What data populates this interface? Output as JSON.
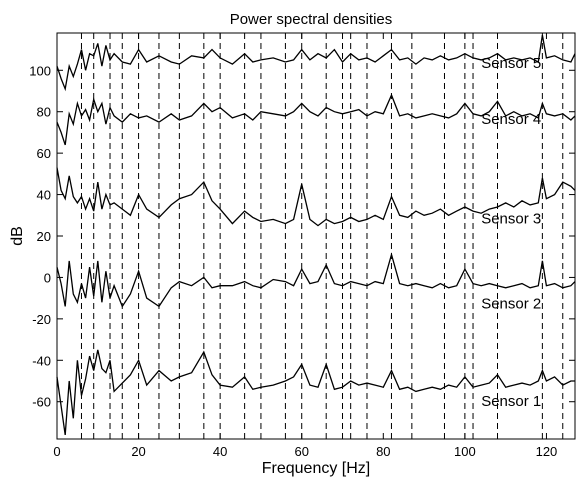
{
  "chart_data": {
    "type": "line",
    "title": "Power spectral densities",
    "xlabel": "Frequency [Hz]",
    "ylabel": "dB",
    "xlim": [
      0,
      127
    ],
    "ylim": [
      -78,
      118
    ],
    "grid": false,
    "x_ticks": [
      0,
      20,
      40,
      60,
      80,
      100,
      120
    ],
    "y_ticks": [
      -60,
      -40,
      -20,
      0,
      20,
      40,
      60,
      80,
      100
    ],
    "x_tick_labels": [
      "0",
      "20",
      "40",
      "60",
      "80",
      "100",
      "120"
    ],
    "y_tick_labels": [
      "-60",
      "-40",
      "-20",
      "0",
      "20",
      "40",
      "60",
      "80",
      "100"
    ],
    "vertical_dashed_lines_hz": [
      6,
      9,
      13,
      16,
      20,
      25,
      30,
      36,
      40,
      46,
      50,
      56,
      60,
      66,
      70,
      72,
      76,
      82,
      87,
      95,
      100,
      102,
      108,
      119,
      124
    ],
    "series": [
      {
        "name": "Sensor 5",
        "x": [
          0,
          1,
          2,
          3,
          4,
          5,
          6,
          7,
          8,
          9,
          10,
          11,
          12,
          13,
          14,
          16,
          18,
          20,
          22,
          25,
          28,
          30,
          33,
          36,
          38,
          40,
          43,
          46,
          48,
          50,
          53,
          56,
          58,
          60,
          62,
          64,
          66,
          68,
          70,
          72,
          74,
          76,
          78,
          80,
          82,
          84,
          86,
          88,
          90,
          92,
          94,
          96,
          98,
          100,
          102,
          104,
          106,
          108,
          110,
          112,
          114,
          116,
          118,
          119,
          120,
          122,
          124,
          126,
          127
        ],
        "values": [
          102,
          96,
          91,
          102,
          97,
          103,
          110,
          100,
          108,
          107,
          113,
          102,
          112,
          105,
          108,
          104,
          103,
          110,
          104,
          107,
          104,
          103,
          107,
          106,
          110,
          106,
          103,
          108,
          104,
          105,
          106,
          104,
          105,
          110,
          105,
          108,
          106,
          110,
          104,
          108,
          105,
          106,
          104,
          107,
          110,
          105,
          106,
          103,
          106,
          105,
          107,
          105,
          106,
          108,
          106,
          105,
          106,
          108,
          105,
          106,
          105,
          106,
          104,
          117,
          106,
          107,
          105,
          104,
          108
        ]
      },
      {
        "name": "Sensor 4",
        "x": [
          0,
          1,
          2,
          3,
          4,
          5,
          6,
          7,
          8,
          9,
          10,
          11,
          12,
          13,
          14,
          16,
          18,
          20,
          22,
          25,
          28,
          30,
          33,
          36,
          38,
          40,
          43,
          46,
          48,
          50,
          53,
          56,
          58,
          60,
          62,
          64,
          66,
          68,
          70,
          72,
          74,
          76,
          78,
          80,
          82,
          84,
          86,
          88,
          90,
          92,
          94,
          96,
          98,
          100,
          102,
          104,
          106,
          108,
          110,
          112,
          114,
          116,
          118,
          119,
          120,
          122,
          124,
          126,
          127
        ],
        "values": [
          75,
          70,
          64,
          79,
          74,
          84,
          78,
          81,
          76,
          86,
          80,
          84,
          74,
          82,
          78,
          75,
          79,
          77,
          78,
          75,
          79,
          76,
          78,
          84,
          80,
          82,
          77,
          79,
          76,
          80,
          79,
          78,
          80,
          84,
          80,
          78,
          82,
          80,
          79,
          80,
          81,
          78,
          80,
          79,
          88,
          78,
          79,
          77,
          78,
          79,
          78,
          77,
          79,
          84,
          79,
          78,
          80,
          85,
          78,
          80,
          78,
          79,
          77,
          84,
          79,
          78,
          79,
          76,
          78
        ]
      },
      {
        "name": "Sensor 3",
        "x": [
          0,
          1,
          2,
          3,
          4,
          5,
          6,
          7,
          8,
          9,
          10,
          11,
          12,
          13,
          14,
          16,
          18,
          20,
          22,
          25,
          28,
          30,
          33,
          36,
          38,
          40,
          43,
          46,
          48,
          50,
          53,
          56,
          58,
          60,
          62,
          64,
          66,
          68,
          70,
          72,
          74,
          76,
          78,
          80,
          82,
          84,
          86,
          88,
          90,
          92,
          94,
          96,
          98,
          100,
          102,
          104,
          106,
          108,
          110,
          112,
          114,
          116,
          118,
          119,
          120,
          122,
          124,
          126,
          127
        ],
        "values": [
          53,
          42,
          38,
          49,
          39,
          36,
          39,
          33,
          38,
          32,
          46,
          33,
          40,
          35,
          36,
          33,
          30,
          40,
          33,
          29,
          35,
          38,
          40,
          46,
          37,
          33,
          26,
          32,
          29,
          27,
          28,
          26,
          28,
          45,
          28,
          25,
          28,
          26,
          27,
          29,
          27,
          28,
          30,
          28,
          39,
          30,
          29,
          32,
          30,
          31,
          33,
          30,
          32,
          34,
          32,
          31,
          33,
          34,
          36,
          34,
          37,
          35,
          36,
          48,
          38,
          40,
          46,
          44,
          42
        ]
      },
      {
        "name": "Sensor 2",
        "x": [
          0,
          1,
          2,
          3,
          4,
          5,
          6,
          7,
          8,
          9,
          10,
          11,
          12,
          13,
          14,
          16,
          18,
          20,
          22,
          25,
          28,
          30,
          33,
          36,
          38,
          40,
          43,
          46,
          48,
          50,
          53,
          56,
          58,
          60,
          62,
          64,
          66,
          68,
          70,
          72,
          74,
          76,
          78,
          80,
          82,
          84,
          86,
          88,
          90,
          92,
          94,
          96,
          98,
          100,
          102,
          104,
          106,
          108,
          110,
          112,
          114,
          116,
          118,
          119,
          120,
          122,
          124,
          126,
          127
        ],
        "values": [
          5,
          -3,
          -14,
          8,
          -8,
          -12,
          -3,
          -10,
          5,
          -9,
          8,
          -12,
          3,
          -10,
          -4,
          -14,
          -8,
          3,
          -10,
          -14,
          -5,
          -2,
          -4,
          0,
          -5,
          -4,
          -4,
          -2,
          -4,
          -5,
          -1,
          -2,
          -4,
          4,
          -3,
          -2,
          6,
          -3,
          -4,
          -2,
          -3,
          -4,
          -2,
          -3,
          11,
          -3,
          -4,
          -3,
          -4,
          -5,
          -3,
          -5,
          -4,
          4,
          -3,
          -4,
          -3,
          -4,
          -5,
          -4,
          -3,
          -5,
          -4,
          8,
          -4,
          -3,
          -5,
          -4,
          -2
        ]
      },
      {
        "name": "Sensor 1",
        "x": [
          0,
          1,
          2,
          3,
          4,
          5,
          6,
          7,
          8,
          9,
          10,
          11,
          12,
          13,
          14,
          16,
          18,
          20,
          22,
          25,
          28,
          30,
          33,
          36,
          38,
          40,
          43,
          46,
          48,
          50,
          53,
          56,
          58,
          60,
          62,
          64,
          66,
          68,
          70,
          72,
          74,
          76,
          78,
          80,
          82,
          84,
          86,
          88,
          90,
          92,
          94,
          96,
          98,
          100,
          102,
          104,
          106,
          108,
          110,
          112,
          114,
          116,
          118,
          119,
          120,
          122,
          124,
          126,
          127
        ],
        "values": [
          -48,
          -62,
          -76,
          -50,
          -68,
          -40,
          -57,
          -49,
          -38,
          -45,
          -35,
          -44,
          -46,
          -40,
          -55,
          -51,
          -47,
          -40,
          -52,
          -45,
          -50,
          -48,
          -46,
          -36,
          -47,
          -52,
          -53,
          -48,
          -54,
          -53,
          -52,
          -50,
          -48,
          -42,
          -52,
          -53,
          -42,
          -54,
          -53,
          -50,
          -52,
          -51,
          -52,
          -53,
          -45,
          -54,
          -53,
          -55,
          -54,
          -53,
          -54,
          -52,
          -53,
          -48,
          -53,
          -52,
          -51,
          -47,
          -53,
          -52,
          -51,
          -52,
          -50,
          -45,
          -50,
          -48,
          -52,
          -50,
          -50
        ]
      }
    ],
    "series_labels": [
      {
        "text": "Sensor 5",
        "x": 104,
        "y": 101
      },
      {
        "text": "Sensor 4",
        "x": 104,
        "y": 74
      },
      {
        "text": "Sensor 3",
        "x": 104,
        "y": 26
      },
      {
        "text": "Sensor 2",
        "x": 104,
        "y": -15
      },
      {
        "text": "Sensor 1",
        "x": 104,
        "y": -62
      }
    ]
  }
}
